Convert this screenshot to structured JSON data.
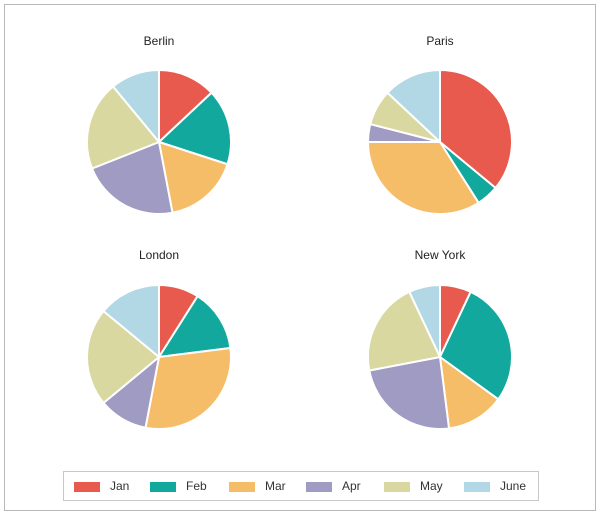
{
  "chart_data": [
    {
      "type": "pie",
      "title": "Berlin",
      "categories": [
        "Jan",
        "Feb",
        "Mar",
        "Apr",
        "May",
        "June"
      ],
      "values": [
        13,
        17,
        17,
        22,
        20,
        11
      ]
    },
    {
      "type": "pie",
      "title": "Paris",
      "categories": [
        "Jan",
        "Feb",
        "Mar",
        "Apr",
        "May",
        "June"
      ],
      "values": [
        36,
        5,
        34,
        4,
        8,
        13
      ]
    },
    {
      "type": "pie",
      "title": "London",
      "categories": [
        "Jan",
        "Feb",
        "Mar",
        "Apr",
        "May",
        "June"
      ],
      "values": [
        9,
        14,
        30,
        11,
        22,
        14
      ]
    },
    {
      "type": "pie",
      "title": "New York",
      "categories": [
        "Jan",
        "Feb",
        "Mar",
        "Apr",
        "May",
        "June"
      ],
      "values": [
        7,
        28,
        13,
        24,
        21,
        7
      ]
    }
  ],
  "legend": {
    "placement": "bottom",
    "items": [
      {
        "label": "Jan",
        "color": "#e8594e"
      },
      {
        "label": "Feb",
        "color": "#13a89e"
      },
      {
        "label": "Mar",
        "color": "#f6bd69"
      },
      {
        "label": "Apr",
        "color": "#a09bc2"
      },
      {
        "label": "May",
        "color": "#d8d8a0"
      },
      {
        "label": "June",
        "color": "#b2d8e5"
      }
    ]
  }
}
